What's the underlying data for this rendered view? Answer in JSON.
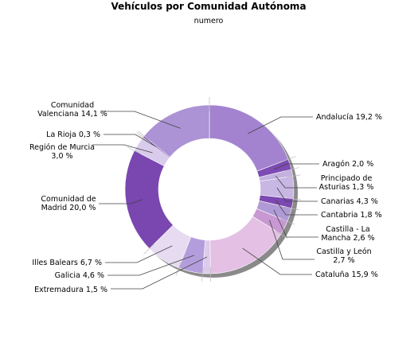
{
  "chart_data": {
    "type": "pie",
    "title": "Vehículos por Comunidad Autónoma",
    "subtitle": "numero",
    "slices": [
      {
        "name": "Andalucía",
        "value": 19.2,
        "label": [
          "Andalucía 19,2 %"
        ],
        "color": "#a383cf"
      },
      {
        "name": "Aragón",
        "value": 2.0,
        "label": [
          "Aragón 2,0 %"
        ],
        "color": "#7d4bb3"
      },
      {
        "name": "Principado de Asturias",
        "value": 1.3,
        "label": [
          "Principado de",
          "Asturias 1,3 %"
        ],
        "color": "#c3b1e0"
      },
      {
        "name": "Canarias",
        "value": 4.3,
        "label": [
          "Canarias 4,3 %"
        ],
        "color": "#c8b6e3"
      },
      {
        "name": "Cantabria",
        "value": 1.8,
        "label": [
          "Cantabria 1,8 %"
        ],
        "color": "#7c48b1"
      },
      {
        "name": "Castilla - La Mancha",
        "value": 2.6,
        "label": [
          "Castilla - La",
          "Mancha 2,6 %"
        ],
        "color": "#b09ad5"
      },
      {
        "name": "Castilla y León",
        "value": 2.7,
        "label": [
          "Castilla y León",
          "2,7 %"
        ],
        "color": "#c898d3"
      },
      {
        "name": "Cataluña",
        "value": 15.9,
        "label": [
          "Cataluña 15,9 %"
        ],
        "color": "#e4c0e4"
      },
      {
        "name": "Extremadura",
        "value": 1.5,
        "label": [
          "Extremadura 1,5 %"
        ],
        "color": "#dccbec"
      },
      {
        "name": "Galicia",
        "value": 4.6,
        "label": [
          "Galicia 4,6 %"
        ],
        "color": "#b49ddc"
      },
      {
        "name": "Illes Balears",
        "value": 6.7,
        "label": [
          "Illes Balears 6,7 %"
        ],
        "color": "#e6dbf1"
      },
      {
        "name": "Comunidad de Madrid",
        "value": 20.0,
        "label": [
          "Comunidad de",
          "Madrid 20,0 %"
        ],
        "color": "#7a46b0"
      },
      {
        "name": "Región de Murcia",
        "value": 3.0,
        "label": [
          "Región de Murcia",
          "3,0 %"
        ],
        "color": "#d9cbec"
      },
      {
        "name": "La Rioja",
        "value": 0.3,
        "label": [
          "La Rioja 0,3 %"
        ],
        "color": "#7a46b0"
      },
      {
        "name": "Comunidad Valenciana",
        "value": 14.1,
        "label": [
          "Comunidad",
          "Valenciana 14,1 %"
        ],
        "color": "#ac93d5"
      }
    ],
    "start": "12 o'clock",
    "direction": "clockwise",
    "hole": "donut"
  }
}
